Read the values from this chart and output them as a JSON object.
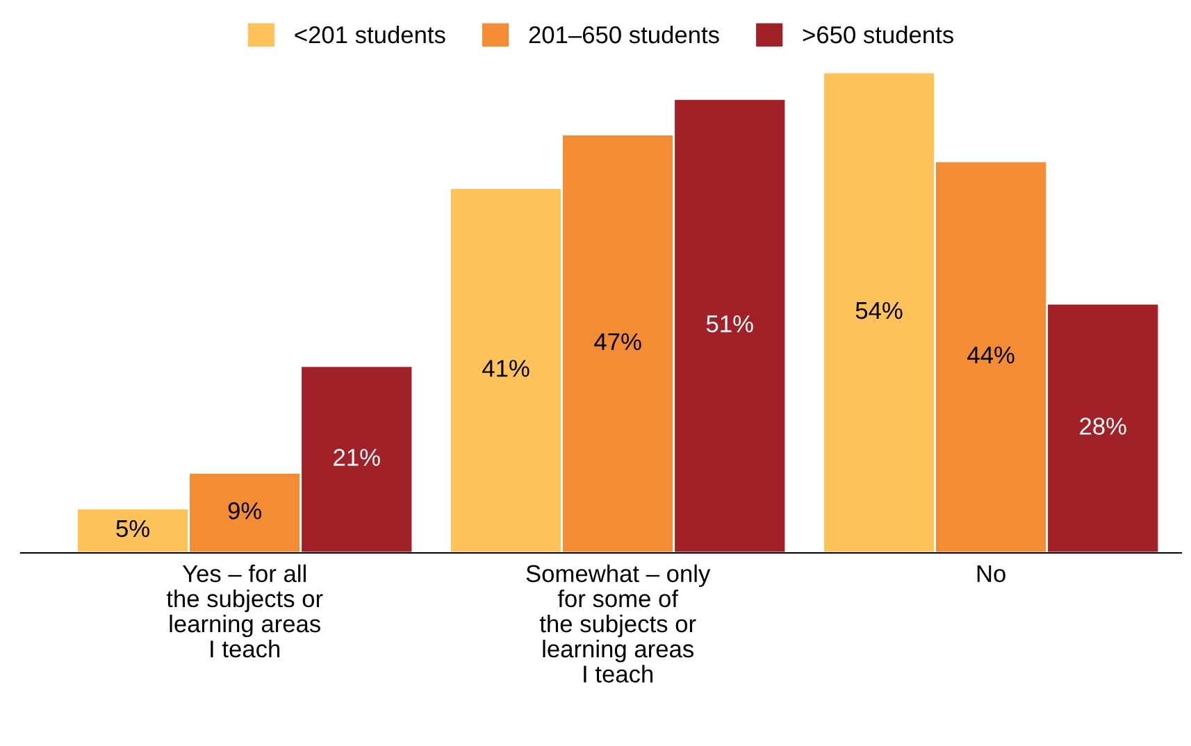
{
  "chart_data": {
    "type": "bar",
    "categories": [
      "Yes – for all\nthe subjects or\nlearning areas\nI teach",
      "Somewhat – only\nfor some of\nthe subjects or\nlearning areas\nI teach",
      "No"
    ],
    "series": [
      {
        "name": "<201 students",
        "color": "#fec25b",
        "values": [
          5,
          41,
          54
        ],
        "value_labels": [
          "5%",
          "41%",
          "54%"
        ]
      },
      {
        "name": "201–650 students",
        "color": "#f48c35",
        "values": [
          9,
          47,
          44
        ],
        "value_labels": [
          "9%",
          "47%",
          "44%"
        ]
      },
      {
        "name": ">650 students",
        "color": "#a02128",
        "values": [
          21,
          51,
          28
        ],
        "value_labels": [
          "21%",
          "51%",
          "28%"
        ]
      }
    ],
    "ylim": [
      0,
      54
    ],
    "tick_labels": "x",
    "grid": false,
    "legend": "top"
  }
}
